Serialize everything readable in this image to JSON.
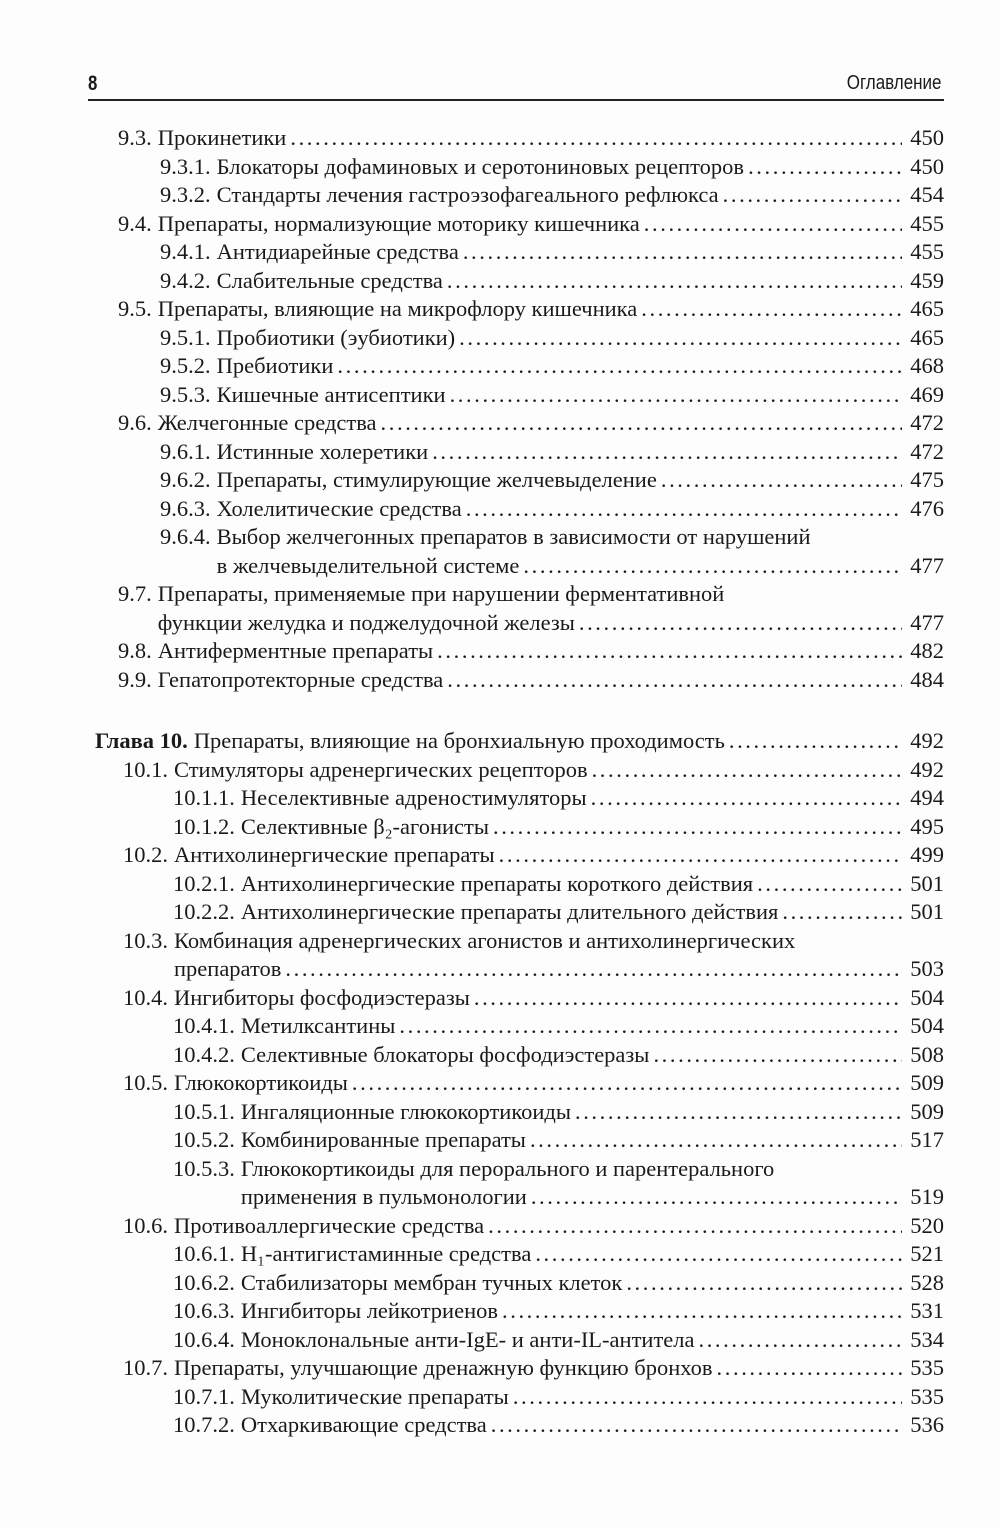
{
  "header": {
    "page_number": "8",
    "title": "Оглавление"
  },
  "sections": [
    {
      "entries": [
        {
          "level": 1,
          "num": "9.3.",
          "title": "Прокинетики",
          "page": "450"
        },
        {
          "level": 2,
          "num": "9.3.1.",
          "title": "Блокаторы дофаминовых и серотониновых рецепторов",
          "page": "450"
        },
        {
          "level": 2,
          "num": "9.3.2.",
          "title": "Стандарты лечения гастроэзофагеального рефлюкса",
          "page": "454"
        },
        {
          "level": 1,
          "num": "9.4.",
          "title": "Препараты, нормализующие моторику кишечника",
          "page": "455"
        },
        {
          "level": 2,
          "num": "9.4.1.",
          "title": "Антидиарейные средства",
          "page": "455"
        },
        {
          "level": 2,
          "num": "9.4.2.",
          "title": "Слабительные средства",
          "page": "459"
        },
        {
          "level": 1,
          "num": "9.5.",
          "title": "Препараты, влияющие на микрофлору кишечника",
          "page": "465"
        },
        {
          "level": 2,
          "num": "9.5.1.",
          "title": "Пробиотики (эубиотики)",
          "page": "465"
        },
        {
          "level": 2,
          "num": "9.5.2.",
          "title": "Пребиотики",
          "page": "468"
        },
        {
          "level": 2,
          "num": "9.5.3.",
          "title": "Кишечные антисептики",
          "page": "469"
        },
        {
          "level": 1,
          "num": "9.6.",
          "title": "Желчегонные средства",
          "page": "472"
        },
        {
          "level": 2,
          "num": "9.6.1.",
          "title": "Истинные холеретики",
          "page": "472"
        },
        {
          "level": 2,
          "num": "9.6.2.",
          "title": "Препараты, стимулирующие желчевыделение",
          "page": "475"
        },
        {
          "level": 2,
          "num": "9.6.3.",
          "title": "Холелитические средства",
          "page": "476"
        },
        {
          "level": 2,
          "num": "9.6.4.",
          "title": "Выбор желчегонных препаратов в зависимости от нарушений",
          "title2": "в желчевыделительной системе",
          "page": "477"
        },
        {
          "level": 1,
          "num": "9.7.",
          "title": "Препараты, применяемые при нарушении ферментативной",
          "title2": "функции желудка и поджелудочной железы",
          "page": "477"
        },
        {
          "level": 1,
          "num": "9.8.",
          "title": "Антиферментные препараты",
          "page": "482"
        },
        {
          "level": 1,
          "num": "9.9.",
          "title": "Гепатопротекторные средства",
          "page": "484"
        }
      ]
    },
    {
      "entries": [
        {
          "level": 0,
          "num": "Глава 10.",
          "title": "Препараты, влияющие на бронхиальную проходимость",
          "page": "492"
        },
        {
          "level": 1,
          "num": "10.1.",
          "title": "Стимуляторы адренергических рецепторов",
          "page": "492"
        },
        {
          "level": 2,
          "num": "10.1.1.",
          "title": "Неселективные адреностимуляторы",
          "page": "494"
        },
        {
          "level": 2,
          "num": "10.1.2.",
          "title": "Селективные β₂-агонисты",
          "page": "495"
        },
        {
          "level": 1,
          "num": "10.2.",
          "title": "Антихолинергические препараты",
          "page": "499"
        },
        {
          "level": 2,
          "num": "10.2.1.",
          "title": "Антихолинергические препараты короткого действия",
          "page": "501"
        },
        {
          "level": 2,
          "num": "10.2.2.",
          "title": "Антихолинергические препараты длительного действия",
          "page": "501"
        },
        {
          "level": 1,
          "num": "10.3.",
          "title": "Комбинация адренергических агонистов и антихолинергических",
          "title2": "препаратов",
          "page": "503"
        },
        {
          "level": 1,
          "num": "10.4.",
          "title": "Ингибиторы фосфодиэстеразы",
          "page": "504"
        },
        {
          "level": 2,
          "num": "10.4.1.",
          "title": "Метилксантины",
          "page": "504"
        },
        {
          "level": 2,
          "num": "10.4.2.",
          "title": "Селективные блокаторы фосфодиэстеразы",
          "page": "508"
        },
        {
          "level": 1,
          "num": "10.5.",
          "title": "Глюкокортикоиды",
          "page": "509"
        },
        {
          "level": 2,
          "num": "10.5.1.",
          "title": "Ингаляционные глюкокортикоиды",
          "page": "509"
        },
        {
          "level": 2,
          "num": "10.5.2.",
          "title": "Комбинированные препараты",
          "page": "517"
        },
        {
          "level": 2,
          "num": "10.5.3.",
          "title": "Глюкокортикоиды для перорального и парентерального",
          "title2": "применения в пульмонологии",
          "page": "519"
        },
        {
          "level": 1,
          "num": "10.6.",
          "title": "Противоаллергические средства",
          "page": "520"
        },
        {
          "level": 2,
          "num": "10.6.1.",
          "title": "H₁-антигистаминные средства",
          "page": "521"
        },
        {
          "level": 2,
          "num": "10.6.2.",
          "title": "Стабилизаторы мембран тучных клеток",
          "page": "528"
        },
        {
          "level": 2,
          "num": "10.6.3.",
          "title": "Ингибиторы лейкотриенов",
          "page": "531"
        },
        {
          "level": 2,
          "num": "10.6.4.",
          "title": "Моноклональные анти-IgE- и анти-IL-антитела",
          "page": "534"
        },
        {
          "level": 1,
          "num": "10.7.",
          "title": "Препараты, улучшающие дренажную функцию бронхов",
          "page": "535"
        },
        {
          "level": 2,
          "num": "10.7.1.",
          "title": "Муколитические препараты",
          "page": "535"
        },
        {
          "level": 2,
          "num": "10.7.2.",
          "title": "Отхаркивающие средства",
          "page": "536"
        }
      ]
    }
  ]
}
